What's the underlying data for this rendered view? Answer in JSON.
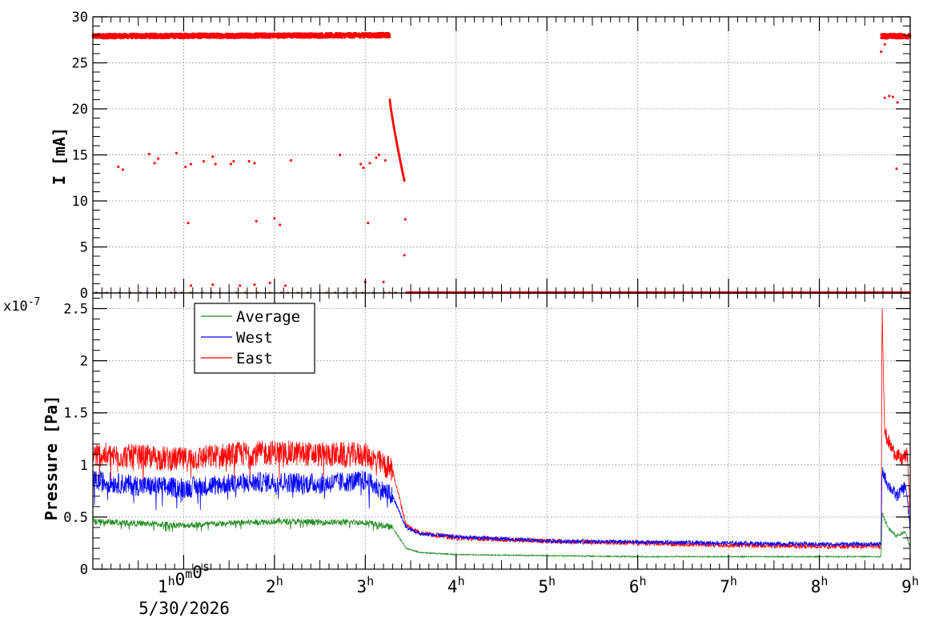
{
  "chart_data": [
    {
      "type": "scatter",
      "panel": "current",
      "ylabel": "I [mA]",
      "ylim": [
        0,
        30
      ],
      "xlim_hours": [
        0,
        9
      ],
      "yticks": [
        "0",
        "5",
        "10",
        "15",
        "20",
        "25",
        "30"
      ],
      "grid": true,
      "series": [
        {
          "color": "#ff0000",
          "segments": [
            {
              "x": [
                0.0,
                3.27
              ],
              "y": [
                27.9,
                28.0
              ]
            },
            {
              "x": [
                3.27,
                3.43
              ],
              "y": [
                21.0,
                12.2
              ]
            },
            {
              "x": [
                8.68,
                9.0
              ],
              "y": [
                27.9,
                27.9
              ]
            }
          ],
          "outliers": [
            {
              "x": 0.28,
              "y": 13.7
            },
            {
              "x": 0.33,
              "y": 13.4
            },
            {
              "x": 0.62,
              "y": 15.1
            },
            {
              "x": 0.68,
              "y": 14.1
            },
            {
              "x": 0.72,
              "y": 14.6
            },
            {
              "x": 0.92,
              "y": 15.2
            },
            {
              "x": 1.02,
              "y": 13.7
            },
            {
              "x": 1.08,
              "y": 14.0
            },
            {
              "x": 1.22,
              "y": 14.3
            },
            {
              "x": 1.32,
              "y": 14.8
            },
            {
              "x": 1.35,
              "y": 14.0
            },
            {
              "x": 1.52,
              "y": 14.0
            },
            {
              "x": 1.55,
              "y": 14.3
            },
            {
              "x": 1.72,
              "y": 14.3
            },
            {
              "x": 1.78,
              "y": 14.1
            },
            {
              "x": 2.18,
              "y": 14.4
            },
            {
              "x": 2.72,
              "y": 15.0
            },
            {
              "x": 2.95,
              "y": 14.0
            },
            {
              "x": 2.98,
              "y": 13.6
            },
            {
              "x": 3.05,
              "y": 14.1
            },
            {
              "x": 3.12,
              "y": 14.7
            },
            {
              "x": 3.15,
              "y": 15.0
            },
            {
              "x": 3.22,
              "y": 14.4
            },
            {
              "x": 1.05,
              "y": 7.6
            },
            {
              "x": 1.8,
              "y": 7.8
            },
            {
              "x": 2.0,
              "y": 8.1
            },
            {
              "x": 2.06,
              "y": 7.4
            },
            {
              "x": 3.03,
              "y": 7.6
            },
            {
              "x": 3.44,
              "y": 8.0
            },
            {
              "x": 3.43,
              "y": 4.1
            },
            {
              "x": 8.72,
              "y": 21.2
            },
            {
              "x": 8.77,
              "y": 21.4
            },
            {
              "x": 8.81,
              "y": 21.3
            },
            {
              "x": 8.86,
              "y": 20.7
            },
            {
              "x": 8.85,
              "y": 13.5
            },
            {
              "x": 8.68,
              "y": 26.2
            },
            {
              "x": 8.72,
              "y": 27.0
            },
            {
              "x": 1.08,
              "y": 0.8
            },
            {
              "x": 1.32,
              "y": 0.9
            },
            {
              "x": 1.62,
              "y": 0.8
            },
            {
              "x": 1.78,
              "y": 0.9
            },
            {
              "x": 1.95,
              "y": 1.1
            },
            {
              "x": 2.12,
              "y": 0.8
            },
            {
              "x": 3.0,
              "y": 1.2
            },
            {
              "x": 3.2,
              "y": 1.2
            }
          ],
          "zero_from_hours": 3.45
        }
      ]
    },
    {
      "type": "line",
      "panel": "pressure",
      "ylabel": "Pressure [Pa]",
      "multiplier": "x10",
      "multiplier_exp": "-7",
      "ylim": [
        0,
        2.65
      ],
      "yticks": [
        "0",
        "0.5",
        "1",
        "1.5",
        "2",
        "2.5"
      ],
      "grid": true,
      "legend_position": "top-left",
      "series": [
        {
          "name": "Average",
          "color": "#228b22",
          "x": [
            0.0,
            0.5,
            1.0,
            1.5,
            2.0,
            2.5,
            3.0,
            3.3,
            3.45,
            3.6,
            4.0,
            5.0,
            6.0,
            7.0,
            8.0,
            8.68,
            8.69,
            8.75,
            8.85,
            8.95,
            9.0
          ],
          "y": [
            0.46,
            0.44,
            0.42,
            0.44,
            0.46,
            0.45,
            0.45,
            0.4,
            0.2,
            0.16,
            0.14,
            0.13,
            0.12,
            0.12,
            0.12,
            0.12,
            0.55,
            0.4,
            0.32,
            0.36,
            0.2
          ]
        },
        {
          "name": "West",
          "color": "#0000ff",
          "x": [
            0.0,
            0.5,
            1.0,
            1.5,
            2.0,
            2.5,
            3.0,
            3.3,
            3.45,
            3.6,
            4.0,
            5.0,
            6.0,
            7.0,
            8.0,
            8.68,
            8.69,
            8.75,
            8.85,
            8.95,
            9.0
          ],
          "y": [
            0.85,
            0.8,
            0.78,
            0.82,
            0.84,
            0.82,
            0.85,
            0.7,
            0.4,
            0.34,
            0.31,
            0.27,
            0.26,
            0.25,
            0.24,
            0.24,
            0.95,
            0.82,
            0.7,
            0.8,
            0.4
          ]
        },
        {
          "name": "East",
          "color": "#ff0000",
          "x": [
            0.0,
            0.5,
            1.0,
            1.5,
            2.0,
            2.5,
            3.0,
            3.3,
            3.45,
            3.6,
            4.0,
            5.0,
            6.0,
            7.0,
            8.0,
            8.68,
            8.69,
            8.72,
            8.8,
            8.9,
            8.97,
            9.0
          ],
          "y": [
            1.1,
            1.08,
            1.05,
            1.1,
            1.12,
            1.1,
            1.1,
            0.95,
            0.42,
            0.35,
            0.3,
            0.27,
            0.25,
            0.23,
            0.22,
            0.22,
            2.58,
            1.3,
            1.15,
            1.05,
            1.1,
            0.5
          ]
        }
      ]
    }
  ],
  "x_axis": {
    "ticks": [
      {
        "hour": 1,
        "label": "1",
        "sup": "h",
        "label_min": "0",
        "sup_min": "m",
        "label_sec": "0",
        "sup_sec": "s"
      },
      {
        "hour": 2,
        "label": "2",
        "sup": "h"
      },
      {
        "hour": 3,
        "label": "3",
        "sup": "h"
      },
      {
        "hour": 4,
        "label": "4",
        "sup": "h"
      },
      {
        "hour": 5,
        "label": "5",
        "sup": "h"
      },
      {
        "hour": 6,
        "label": "6",
        "sup": "h"
      },
      {
        "hour": 7,
        "label": "7",
        "sup": "h"
      },
      {
        "hour": 8,
        "label": "8",
        "sup": "h"
      },
      {
        "hour": 9,
        "label": "9",
        "sup": "h"
      }
    ],
    "date_label": "5/30/2026"
  }
}
